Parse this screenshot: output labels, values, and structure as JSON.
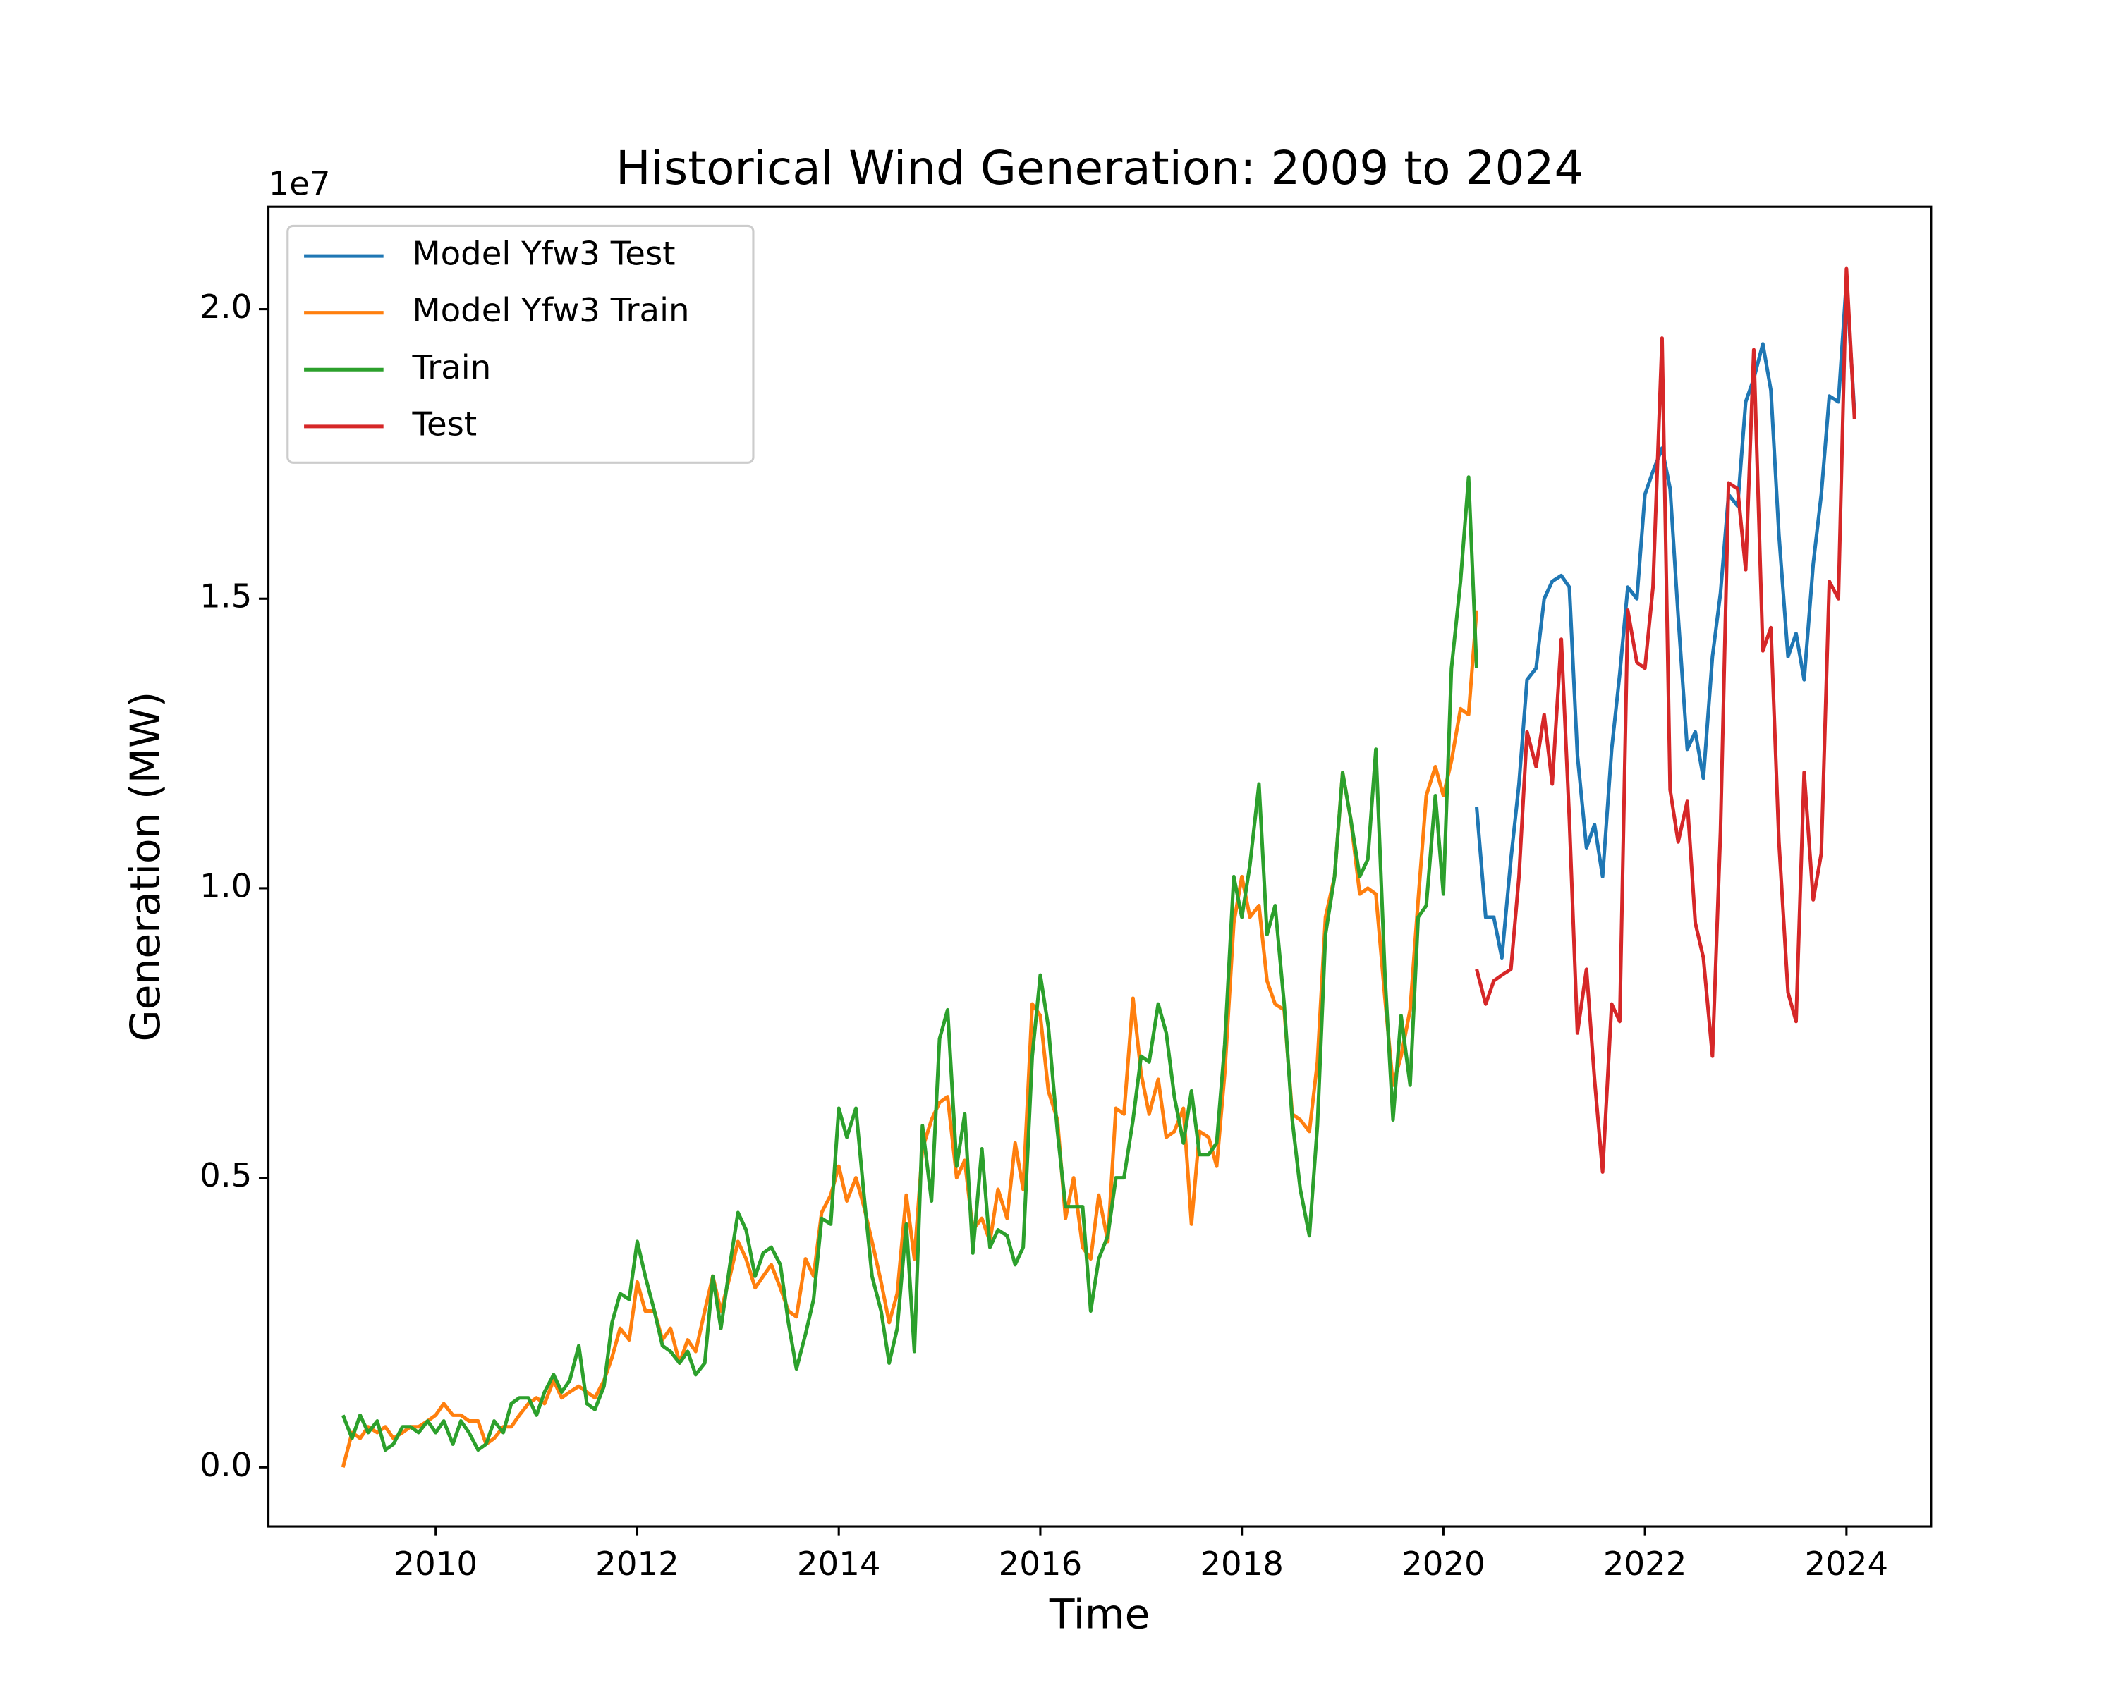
{
  "chart_data": {
    "type": "line",
    "title": "Historical Wind Generation: 2009 to 2024",
    "x_label": "Time",
    "y_label": "Generation (MW)",
    "y_offset_label": "1e7",
    "xlim": [
      2008.34,
      2024.84
    ],
    "ylim": [
      -0.102,
      2.177
    ],
    "xticks": [
      2010,
      2012,
      2014,
      2016,
      2018,
      2020,
      2022,
      2024
    ],
    "yticks": [
      {
        "value": 0,
        "label": "0.0"
      },
      0.5,
      {
        "value": 1,
        "label": "1.0"
      },
      1.5,
      {
        "value": 2,
        "label": "2.0"
      }
    ],
    "legend": "upper left",
    "grid": false,
    "series": [
      {
        "name": "Model Yfw3 Test",
        "color": "#1f77b4",
        "x": [
          2020.33,
          2020.42,
          2020.5,
          2020.58,
          2020.67,
          2020.75,
          2020.83,
          2020.92,
          2021,
          2021.08,
          2021.17,
          2021.25,
          2021.33,
          2021.42,
          2021.5,
          2021.58,
          2021.67,
          2021.75,
          2021.83,
          2021.92,
          2022,
          2022.08,
          2022.17,
          2022.25,
          2022.33,
          2022.42,
          2022.5,
          2022.58,
          2022.67,
          2022.75,
          2022.83,
          2022.92,
          2023,
          2023.08,
          2023.17,
          2023.25,
          2023.33,
          2023.42,
          2023.5,
          2023.58,
          2023.67,
          2023.75,
          2023.83,
          2023.92,
          2024,
          2024.08
        ],
        "values": [
          1.14,
          0.95,
          0.95,
          0.88,
          1.05,
          1.18,
          1.36,
          1.38,
          1.5,
          1.53,
          1.54,
          1.52,
          1.23,
          1.07,
          1.11,
          1.02,
          1.24,
          1.37,
          1.52,
          1.5,
          1.68,
          1.72,
          1.76,
          1.69,
          1.47,
          1.24,
          1.27,
          1.19,
          1.4,
          1.51,
          1.68,
          1.66,
          1.84,
          1.88,
          1.94,
          1.86,
          1.61,
          1.4,
          1.44,
          1.36,
          1.56,
          1.68,
          1.85,
          1.84,
          2.05,
          1.82
        ]
      },
      {
        "name": "Model Yfw3 Train",
        "color": "#ff7f0e",
        "x": [
          2009.08,
          2009.17,
          2009.25,
          2009.33,
          2009.42,
          2009.5,
          2009.58,
          2009.67,
          2009.75,
          2009.83,
          2009.92,
          2010,
          2010.08,
          2010.17,
          2010.25,
          2010.33,
          2010.42,
          2010.5,
          2010.58,
          2010.67,
          2010.75,
          2010.83,
          2010.92,
          2011,
          2011.08,
          2011.17,
          2011.25,
          2011.33,
          2011.42,
          2011.5,
          2011.58,
          2011.67,
          2011.75,
          2011.83,
          2011.92,
          2012,
          2012.08,
          2012.17,
          2012.25,
          2012.33,
          2012.42,
          2012.5,
          2012.58,
          2012.67,
          2012.75,
          2012.83,
          2012.92,
          2013,
          2013.08,
          2013.17,
          2013.25,
          2013.33,
          2013.42,
          2013.5,
          2013.58,
          2013.67,
          2013.75,
          2013.83,
          2013.92,
          2014,
          2014.08,
          2014.17,
          2014.25,
          2014.33,
          2014.42,
          2014.5,
          2014.58,
          2014.67,
          2014.75,
          2014.83,
          2014.92,
          2015,
          2015.08,
          2015.17,
          2015.25,
          2015.33,
          2015.42,
          2015.5,
          2015.58,
          2015.67,
          2015.75,
          2015.83,
          2015.92,
          2016,
          2016.08,
          2016.17,
          2016.25,
          2016.33,
          2016.42,
          2016.5,
          2016.58,
          2016.67,
          2016.75,
          2016.83,
          2016.92,
          2017,
          2017.08,
          2017.17,
          2017.25,
          2017.33,
          2017.42,
          2017.5,
          2017.58,
          2017.67,
          2017.75,
          2017.83,
          2017.92,
          2018,
          2018.08,
          2018.17,
          2018.25,
          2018.33,
          2018.42,
          2018.5,
          2018.58,
          2018.67,
          2018.75,
          2018.83,
          2018.92,
          2019,
          2019.08,
          2019.17,
          2019.25,
          2019.33,
          2019.42,
          2019.5,
          2019.58,
          2019.67,
          2019.75,
          2019.83,
          2019.92,
          2020,
          2020.08,
          2020.17,
          2020.25,
          2020.33
        ],
        "values": [
          0.0,
          0.06,
          0.05,
          0.07,
          0.06,
          0.07,
          0.05,
          0.06,
          0.07,
          0.07,
          0.08,
          0.09,
          0.11,
          0.09,
          0.09,
          0.08,
          0.08,
          0.04,
          0.05,
          0.07,
          0.07,
          0.09,
          0.11,
          0.12,
          0.11,
          0.15,
          0.12,
          0.13,
          0.14,
          0.13,
          0.12,
          0.15,
          0.19,
          0.24,
          0.22,
          0.32,
          0.27,
          0.27,
          0.22,
          0.24,
          0.18,
          0.22,
          0.2,
          0.27,
          0.33,
          0.27,
          0.33,
          0.39,
          0.36,
          0.31,
          0.33,
          0.35,
          0.31,
          0.27,
          0.26,
          0.36,
          0.33,
          0.44,
          0.47,
          0.52,
          0.46,
          0.5,
          0.45,
          0.39,
          0.32,
          0.25,
          0.3,
          0.47,
          0.36,
          0.55,
          0.6,
          0.63,
          0.64,
          0.5,
          0.53,
          0.41,
          0.43,
          0.39,
          0.48,
          0.43,
          0.56,
          0.48,
          0.8,
          0.78,
          0.65,
          0.6,
          0.43,
          0.5,
          0.38,
          0.36,
          0.47,
          0.39,
          0.62,
          0.61,
          0.81,
          0.68,
          0.61,
          0.67,
          0.57,
          0.58,
          0.62,
          0.42,
          0.58,
          0.57,
          0.52,
          0.68,
          0.94,
          1.02,
          0.95,
          0.97,
          0.84,
          0.8,
          0.79,
          0.61,
          0.6,
          0.58,
          0.7,
          0.95,
          1.02,
          1.2,
          1.12,
          0.99,
          1.0,
          0.99,
          0.81,
          0.66,
          0.71,
          0.79,
          0.98,
          1.16,
          1.21,
          1.16,
          1.22,
          1.31,
          1.3,
          1.48
        ]
      },
      {
        "name": "Train",
        "color": "#2ca02c",
        "x": [
          2009.08,
          2009.17,
          2009.25,
          2009.33,
          2009.42,
          2009.5,
          2009.58,
          2009.67,
          2009.75,
          2009.83,
          2009.92,
          2010,
          2010.08,
          2010.17,
          2010.25,
          2010.33,
          2010.42,
          2010.5,
          2010.58,
          2010.67,
          2010.75,
          2010.83,
          2010.92,
          2011,
          2011.08,
          2011.17,
          2011.25,
          2011.33,
          2011.42,
          2011.5,
          2011.58,
          2011.67,
          2011.75,
          2011.83,
          2011.92,
          2012,
          2012.08,
          2012.17,
          2012.25,
          2012.33,
          2012.42,
          2012.5,
          2012.58,
          2012.67,
          2012.75,
          2012.83,
          2012.92,
          2013,
          2013.08,
          2013.17,
          2013.25,
          2013.33,
          2013.42,
          2013.5,
          2013.58,
          2013.67,
          2013.75,
          2013.83,
          2013.92,
          2014,
          2014.08,
          2014.17,
          2014.25,
          2014.33,
          2014.42,
          2014.5,
          2014.58,
          2014.67,
          2014.75,
          2014.83,
          2014.92,
          2015,
          2015.08,
          2015.17,
          2015.25,
          2015.33,
          2015.42,
          2015.5,
          2015.58,
          2015.67,
          2015.75,
          2015.83,
          2015.92,
          2016,
          2016.08,
          2016.17,
          2016.25,
          2016.33,
          2016.42,
          2016.5,
          2016.58,
          2016.67,
          2016.75,
          2016.83,
          2016.92,
          2017,
          2017.08,
          2017.17,
          2017.25,
          2017.33,
          2017.42,
          2017.5,
          2017.58,
          2017.67,
          2017.75,
          2017.83,
          2017.92,
          2018,
          2018.08,
          2018.17,
          2018.25,
          2018.33,
          2018.42,
          2018.5,
          2018.58,
          2018.67,
          2018.75,
          2018.83,
          2018.92,
          2019,
          2019.08,
          2019.17,
          2019.25,
          2019.33,
          2019.42,
          2019.5,
          2019.58,
          2019.67,
          2019.75,
          2019.83,
          2019.92,
          2020,
          2020.08,
          2020.17,
          2020.25,
          2020.33
        ],
        "values": [
          0.09,
          0.05,
          0.09,
          0.06,
          0.08,
          0.03,
          0.04,
          0.07,
          0.07,
          0.06,
          0.08,
          0.06,
          0.08,
          0.04,
          0.08,
          0.06,
          0.03,
          0.04,
          0.08,
          0.06,
          0.11,
          0.12,
          0.12,
          0.09,
          0.13,
          0.16,
          0.13,
          0.15,
          0.21,
          0.11,
          0.1,
          0.14,
          0.25,
          0.3,
          0.29,
          0.39,
          0.33,
          0.27,
          0.21,
          0.2,
          0.18,
          0.2,
          0.16,
          0.18,
          0.33,
          0.24,
          0.35,
          0.44,
          0.41,
          0.33,
          0.37,
          0.38,
          0.35,
          0.25,
          0.17,
          0.23,
          0.29,
          0.43,
          0.42,
          0.62,
          0.57,
          0.62,
          0.47,
          0.33,
          0.27,
          0.18,
          0.24,
          0.42,
          0.2,
          0.59,
          0.46,
          0.74,
          0.79,
          0.52,
          0.61,
          0.37,
          0.55,
          0.38,
          0.41,
          0.4,
          0.35,
          0.38,
          0.71,
          0.85,
          0.76,
          0.58,
          0.45,
          0.45,
          0.45,
          0.27,
          0.36,
          0.4,
          0.5,
          0.5,
          0.6,
          0.71,
          0.7,
          0.8,
          0.75,
          0.64,
          0.56,
          0.65,
          0.54,
          0.54,
          0.56,
          0.73,
          1.02,
          0.95,
          1.04,
          1.18,
          0.92,
          0.97,
          0.8,
          0.6,
          0.48,
          0.4,
          0.59,
          0.92,
          1.02,
          1.2,
          1.12,
          1.02,
          1.05,
          1.24,
          0.85,
          0.6,
          0.78,
          0.66,
          0.95,
          0.97,
          1.16,
          0.99,
          1.38,
          1.53,
          1.71,
          1.38
        ]
      },
      {
        "name": "Test",
        "color": "#d62728",
        "x": [
          2020.33,
          2020.42,
          2020.5,
          2020.58,
          2020.67,
          2020.75,
          2020.83,
          2020.92,
          2021,
          2021.08,
          2021.17,
          2021.25,
          2021.33,
          2021.42,
          2021.5,
          2021.58,
          2021.67,
          2021.75,
          2021.83,
          2021.92,
          2022,
          2022.08,
          2022.17,
          2022.25,
          2022.33,
          2022.42,
          2022.5,
          2022.58,
          2022.67,
          2022.75,
          2022.83,
          2022.92,
          2023,
          2023.08,
          2023.17,
          2023.25,
          2023.33,
          2023.42,
          2023.5,
          2023.58,
          2023.67,
          2023.75,
          2023.83,
          2023.92,
          2024,
          2024.08
        ],
        "values": [
          0.86,
          0.8,
          0.84,
          0.85,
          0.86,
          1.02,
          1.27,
          1.21,
          1.3,
          1.18,
          1.43,
          1.12,
          0.75,
          0.86,
          0.67,
          0.51,
          0.8,
          0.77,
          1.48,
          1.39,
          1.38,
          1.52,
          1.95,
          1.17,
          1.08,
          1.15,
          0.94,
          0.88,
          0.71,
          1.1,
          1.7,
          1.69,
          1.55,
          1.93,
          1.41,
          1.45,
          1.08,
          0.82,
          0.77,
          1.2,
          0.98,
          1.06,
          1.53,
          1.5,
          2.07,
          1.81
        ]
      }
    ]
  }
}
